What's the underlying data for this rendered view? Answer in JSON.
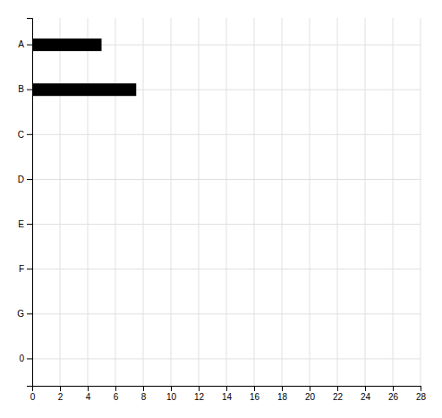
{
  "chart_data": {
    "type": "bar",
    "orientation": "horizontal",
    "categories": [
      "A",
      "B",
      "C",
      "D",
      "E",
      "F",
      "G",
      "0"
    ],
    "values": [
      5.0,
      7.5,
      null,
      null,
      null,
      null,
      null,
      null
    ],
    "color": "#000000",
    "xlim": [
      0,
      28
    ],
    "xticks": [
      0,
      2,
      4,
      6,
      8,
      10,
      12,
      14,
      16,
      18,
      20,
      22,
      24,
      26,
      28
    ],
    "grid": true
  }
}
